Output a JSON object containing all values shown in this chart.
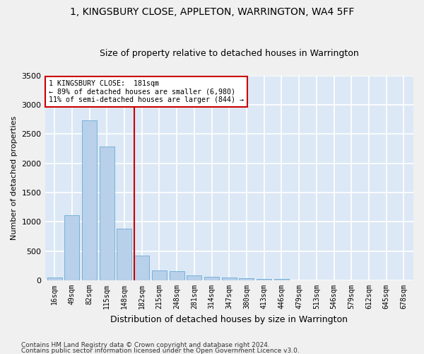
{
  "title1": "1, KINGSBURY CLOSE, APPLETON, WARRINGTON, WA4 5FF",
  "title2": "Size of property relative to detached houses in Warrington",
  "xlabel": "Distribution of detached houses by size in Warrington",
  "ylabel": "Number of detached properties",
  "categories": [
    "16sqm",
    "49sqm",
    "82sqm",
    "115sqm",
    "148sqm",
    "182sqm",
    "215sqm",
    "248sqm",
    "281sqm",
    "314sqm",
    "347sqm",
    "380sqm",
    "413sqm",
    "446sqm",
    "479sqm",
    "513sqm",
    "546sqm",
    "579sqm",
    "612sqm",
    "645sqm",
    "678sqm"
  ],
  "values": [
    55,
    1110,
    2730,
    2285,
    880,
    430,
    170,
    160,
    90,
    60,
    50,
    35,
    30,
    25,
    5,
    0,
    0,
    0,
    0,
    0,
    0
  ],
  "bar_color": "#b8d0ea",
  "bar_edge_color": "#6aaad4",
  "vline_color": "#cc0000",
  "annotation_line1": "1 KINGSBURY CLOSE:  181sqm",
  "annotation_line2": "← 89% of detached houses are smaller (6,980)",
  "annotation_line3": "11% of semi-detached houses are larger (844) →",
  "annotation_box_facecolor": "#ffffff",
  "annotation_box_edgecolor": "#cc0000",
  "ylim_max": 3500,
  "yticks": [
    0,
    500,
    1000,
    1500,
    2000,
    2500,
    3000,
    3500
  ],
  "bg_color": "#dce8f5",
  "grid_color": "#ffffff",
  "fig_bg_color": "#f0f0f0",
  "title1_fontsize": 10,
  "title2_fontsize": 9,
  "xlabel_fontsize": 9,
  "ylabel_fontsize": 8,
  "tick_fontsize": 7,
  "footnote1": "Contains HM Land Registry data © Crown copyright and database right 2024.",
  "footnote2": "Contains public sector information licensed under the Open Government Licence v3.0.",
  "footnote_fontsize": 6.5
}
